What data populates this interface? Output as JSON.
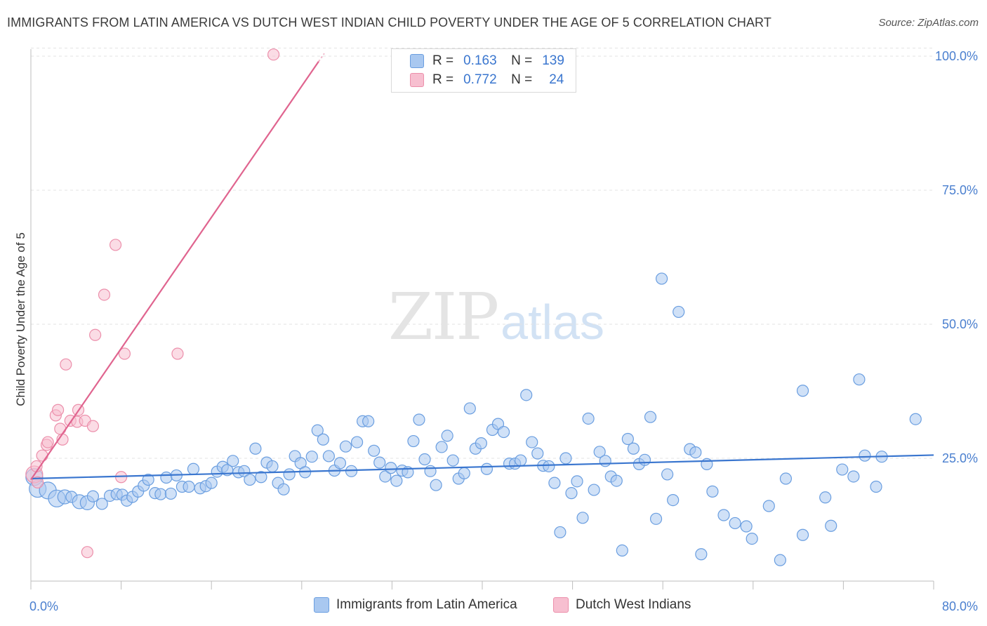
{
  "header": {
    "title": "IMMIGRANTS FROM LATIN AMERICA VS DUTCH WEST INDIAN CHILD POVERTY UNDER THE AGE OF 5 CORRELATION CHART",
    "source": "Source: ZipAtlas.com"
  },
  "watermark": {
    "zip": "ZIP",
    "atlas": "atlas"
  },
  "legend": {
    "r_label": "R =",
    "n_label": "N =",
    "rows": [
      {
        "r": "0.163",
        "n": "139"
      },
      {
        "r": "0.772",
        "n": "24"
      }
    ]
  },
  "colors": {
    "blue_fill": "#a9c8f0",
    "blue_stroke": "#6a9ee0",
    "blue_line": "#3a76cf",
    "pink_fill": "#f7bfd0",
    "pink_stroke": "#ec8fab",
    "pink_line": "#e0648f",
    "grid": "#e3e3e3",
    "tick_text": "#4a7fcf"
  },
  "chart_data": {
    "type": "scatter",
    "title": "IMMIGRANTS FROM LATIN AMERICA VS DUTCH WEST INDIAN CHILD POVERTY UNDER THE AGE OF 5 CORRELATION CHART",
    "xlabel": "",
    "ylabel": "Child Poverty Under the Age of 5",
    "xlim": [
      0,
      80
    ],
    "ylim": [
      0,
      102
    ],
    "x_ticks": [
      0,
      80
    ],
    "x_tick_labels": [
      "0.0%",
      "80.0%"
    ],
    "y_ticks": [
      25,
      50,
      75,
      100
    ],
    "y_tick_labels": [
      "25.0%",
      "50.0%",
      "75.0%",
      "100.0%"
    ],
    "grid": true,
    "legend_position": "top-center",
    "series": [
      {
        "name": "Immigrants from Latin America",
        "r": 0.163,
        "n": 139,
        "trend": [
          [
            0,
            21.2
          ],
          [
            80,
            25.6
          ]
        ],
        "points": [
          [
            0.3,
            21.5,
            12
          ],
          [
            0.6,
            19.3,
            12
          ],
          [
            1.5,
            19.0,
            12
          ],
          [
            2.3,
            17.5,
            12
          ],
          [
            3.0,
            17.8,
            10
          ],
          [
            3.6,
            17.8,
            8
          ],
          [
            4.3,
            16.9,
            10
          ],
          [
            5.0,
            16.7,
            10
          ],
          [
            5.5,
            17.9,
            8
          ],
          [
            6.3,
            16.5,
            8
          ],
          [
            7.0,
            18.0,
            8
          ],
          [
            7.6,
            18.3,
            8
          ],
          [
            8.1,
            18.2,
            8
          ],
          [
            8.5,
            17.1,
            8
          ],
          [
            9.0,
            17.8,
            8
          ],
          [
            9.5,
            18.8,
            8
          ],
          [
            10.0,
            19.9,
            8
          ],
          [
            10.4,
            21.0,
            8
          ],
          [
            11.0,
            18.5,
            8
          ],
          [
            11.5,
            18.3,
            8
          ],
          [
            12.0,
            21.4,
            8
          ],
          [
            12.4,
            18.4,
            8
          ],
          [
            12.9,
            21.8,
            8
          ],
          [
            13.4,
            19.7,
            8
          ],
          [
            14.0,
            19.7,
            8
          ],
          [
            14.4,
            23.0,
            8
          ],
          [
            15.0,
            19.4,
            8
          ],
          [
            15.5,
            19.8,
            8
          ],
          [
            16.0,
            20.4,
            8
          ],
          [
            16.5,
            22.5,
            8
          ],
          [
            17.0,
            23.4,
            8
          ],
          [
            17.4,
            22.8,
            8
          ],
          [
            17.9,
            24.5,
            8
          ],
          [
            18.4,
            22.4,
            8
          ],
          [
            18.9,
            22.6,
            8
          ],
          [
            19.4,
            21.0,
            8
          ],
          [
            19.9,
            26.8,
            8
          ],
          [
            20.4,
            21.5,
            8
          ],
          [
            20.9,
            24.2,
            8
          ],
          [
            21.4,
            23.5,
            8
          ],
          [
            21.9,
            20.4,
            8
          ],
          [
            22.4,
            19.2,
            8
          ],
          [
            22.9,
            22.0,
            8
          ],
          [
            23.4,
            25.4,
            8
          ],
          [
            23.9,
            24.1,
            8
          ],
          [
            24.3,
            22.4,
            8
          ],
          [
            24.9,
            25.3,
            8
          ],
          [
            25.4,
            30.2,
            8
          ],
          [
            25.9,
            28.5,
            8
          ],
          [
            26.4,
            25.4,
            8
          ],
          [
            26.9,
            22.7,
            8
          ],
          [
            27.4,
            24.1,
            8
          ],
          [
            27.9,
            27.2,
            8
          ],
          [
            28.4,
            22.6,
            8
          ],
          [
            28.9,
            28.0,
            8
          ],
          [
            29.4,
            31.9,
            8
          ],
          [
            29.9,
            31.9,
            8
          ],
          [
            30.4,
            26.4,
            8
          ],
          [
            30.9,
            24.2,
            8
          ],
          [
            31.4,
            21.6,
            8
          ],
          [
            31.9,
            23.2,
            8
          ],
          [
            32.4,
            20.8,
            8
          ],
          [
            32.9,
            22.7,
            8
          ],
          [
            33.4,
            22.4,
            8
          ],
          [
            33.9,
            28.2,
            8
          ],
          [
            34.4,
            32.2,
            8
          ],
          [
            34.9,
            24.8,
            8
          ],
          [
            35.4,
            22.6,
            8
          ],
          [
            35.9,
            20.0,
            8
          ],
          [
            36.4,
            27.1,
            8
          ],
          [
            36.9,
            29.2,
            8
          ],
          [
            37.4,
            24.6,
            8
          ],
          [
            37.9,
            21.2,
            8
          ],
          [
            38.4,
            22.2,
            8
          ],
          [
            38.9,
            34.3,
            8
          ],
          [
            39.4,
            26.8,
            8
          ],
          [
            39.9,
            27.8,
            8
          ],
          [
            40.4,
            23.0,
            8
          ],
          [
            40.9,
            30.3,
            8
          ],
          [
            41.4,
            31.4,
            8
          ],
          [
            41.9,
            29.9,
            8
          ],
          [
            42.4,
            24.0,
            8
          ],
          [
            42.9,
            24.0,
            8
          ],
          [
            43.4,
            24.6,
            8
          ],
          [
            43.9,
            36.8,
            8
          ],
          [
            44.4,
            28.0,
            8
          ],
          [
            44.9,
            25.9,
            8
          ],
          [
            45.4,
            23.6,
            8
          ],
          [
            45.9,
            23.5,
            8
          ],
          [
            46.4,
            20.4,
            8
          ],
          [
            46.9,
            11.2,
            8
          ],
          [
            47.4,
            25.0,
            8
          ],
          [
            47.9,
            18.5,
            8
          ],
          [
            48.4,
            20.7,
            8
          ],
          [
            48.9,
            13.9,
            8
          ],
          [
            49.4,
            32.4,
            8
          ],
          [
            49.9,
            19.1,
            8
          ],
          [
            50.4,
            26.2,
            8
          ],
          [
            50.9,
            24.5,
            8
          ],
          [
            51.4,
            21.6,
            8
          ],
          [
            51.9,
            20.8,
            8
          ],
          [
            52.4,
            7.8,
            8
          ],
          [
            52.9,
            28.6,
            8
          ],
          [
            53.4,
            26.8,
            8
          ],
          [
            53.9,
            23.9,
            8
          ],
          [
            54.4,
            24.7,
            8
          ],
          [
            54.9,
            32.7,
            8
          ],
          [
            55.4,
            13.7,
            8
          ],
          [
            55.9,
            58.5,
            8
          ],
          [
            56.4,
            22.0,
            8
          ],
          [
            56.9,
            17.2,
            8
          ],
          [
            57.4,
            52.3,
            8
          ],
          [
            58.4,
            26.7,
            8
          ],
          [
            58.9,
            26.1,
            8
          ],
          [
            59.4,
            7.1,
            8
          ],
          [
            59.9,
            23.9,
            8
          ],
          [
            60.4,
            18.8,
            8
          ],
          [
            61.4,
            14.4,
            8
          ],
          [
            62.4,
            12.9,
            8
          ],
          [
            63.4,
            12.3,
            8
          ],
          [
            63.9,
            10.0,
            8
          ],
          [
            65.4,
            16.1,
            8
          ],
          [
            66.4,
            6.0,
            8
          ],
          [
            66.9,
            21.2,
            8
          ],
          [
            68.4,
            10.7,
            8
          ],
          [
            68.4,
            37.6,
            8
          ],
          [
            70.4,
            17.7,
            8
          ],
          [
            70.9,
            12.4,
            8
          ],
          [
            71.9,
            22.9,
            8
          ],
          [
            72.9,
            21.6,
            8
          ],
          [
            73.4,
            39.7,
            8
          ],
          [
            73.9,
            25.5,
            8
          ],
          [
            74.9,
            19.7,
            8
          ],
          [
            75.4,
            25.3,
            8
          ],
          [
            78.4,
            32.3,
            8
          ]
        ]
      },
      {
        "name": "Dutch West Indians",
        "r": 0.772,
        "n": 24,
        "trend": [
          [
            0,
            21.0
          ],
          [
            25.5,
            99.0
          ]
        ],
        "trend_dashed": [
          [
            25.5,
            99.0
          ],
          [
            26.0,
            100.5
          ]
        ],
        "points": [
          [
            0.3,
            22.0,
            12
          ],
          [
            0.5,
            23.5,
            8
          ],
          [
            0.6,
            20.5,
            8
          ],
          [
            1.0,
            25.5,
            8
          ],
          [
            1.4,
            27.5,
            8
          ],
          [
            1.5,
            28.0,
            8
          ],
          [
            2.2,
            33.0,
            8
          ],
          [
            2.4,
            34.0,
            8
          ],
          [
            2.6,
            30.5,
            8
          ],
          [
            2.8,
            28.5,
            8
          ],
          [
            3.1,
            42.5,
            8
          ],
          [
            3.5,
            32.0,
            8
          ],
          [
            4.1,
            31.8,
            8
          ],
          [
            4.2,
            34.0,
            8
          ],
          [
            4.8,
            32.0,
            8
          ],
          [
            5.0,
            7.5,
            8
          ],
          [
            5.5,
            31.0,
            8
          ],
          [
            5.7,
            48.0,
            8
          ],
          [
            6.5,
            55.5,
            8
          ],
          [
            7.5,
            64.8,
            8
          ],
          [
            8.0,
            21.5,
            8
          ],
          [
            8.3,
            44.5,
            8
          ],
          [
            13.0,
            44.5,
            8
          ],
          [
            21.5,
            100.3,
            8
          ]
        ]
      }
    ]
  }
}
